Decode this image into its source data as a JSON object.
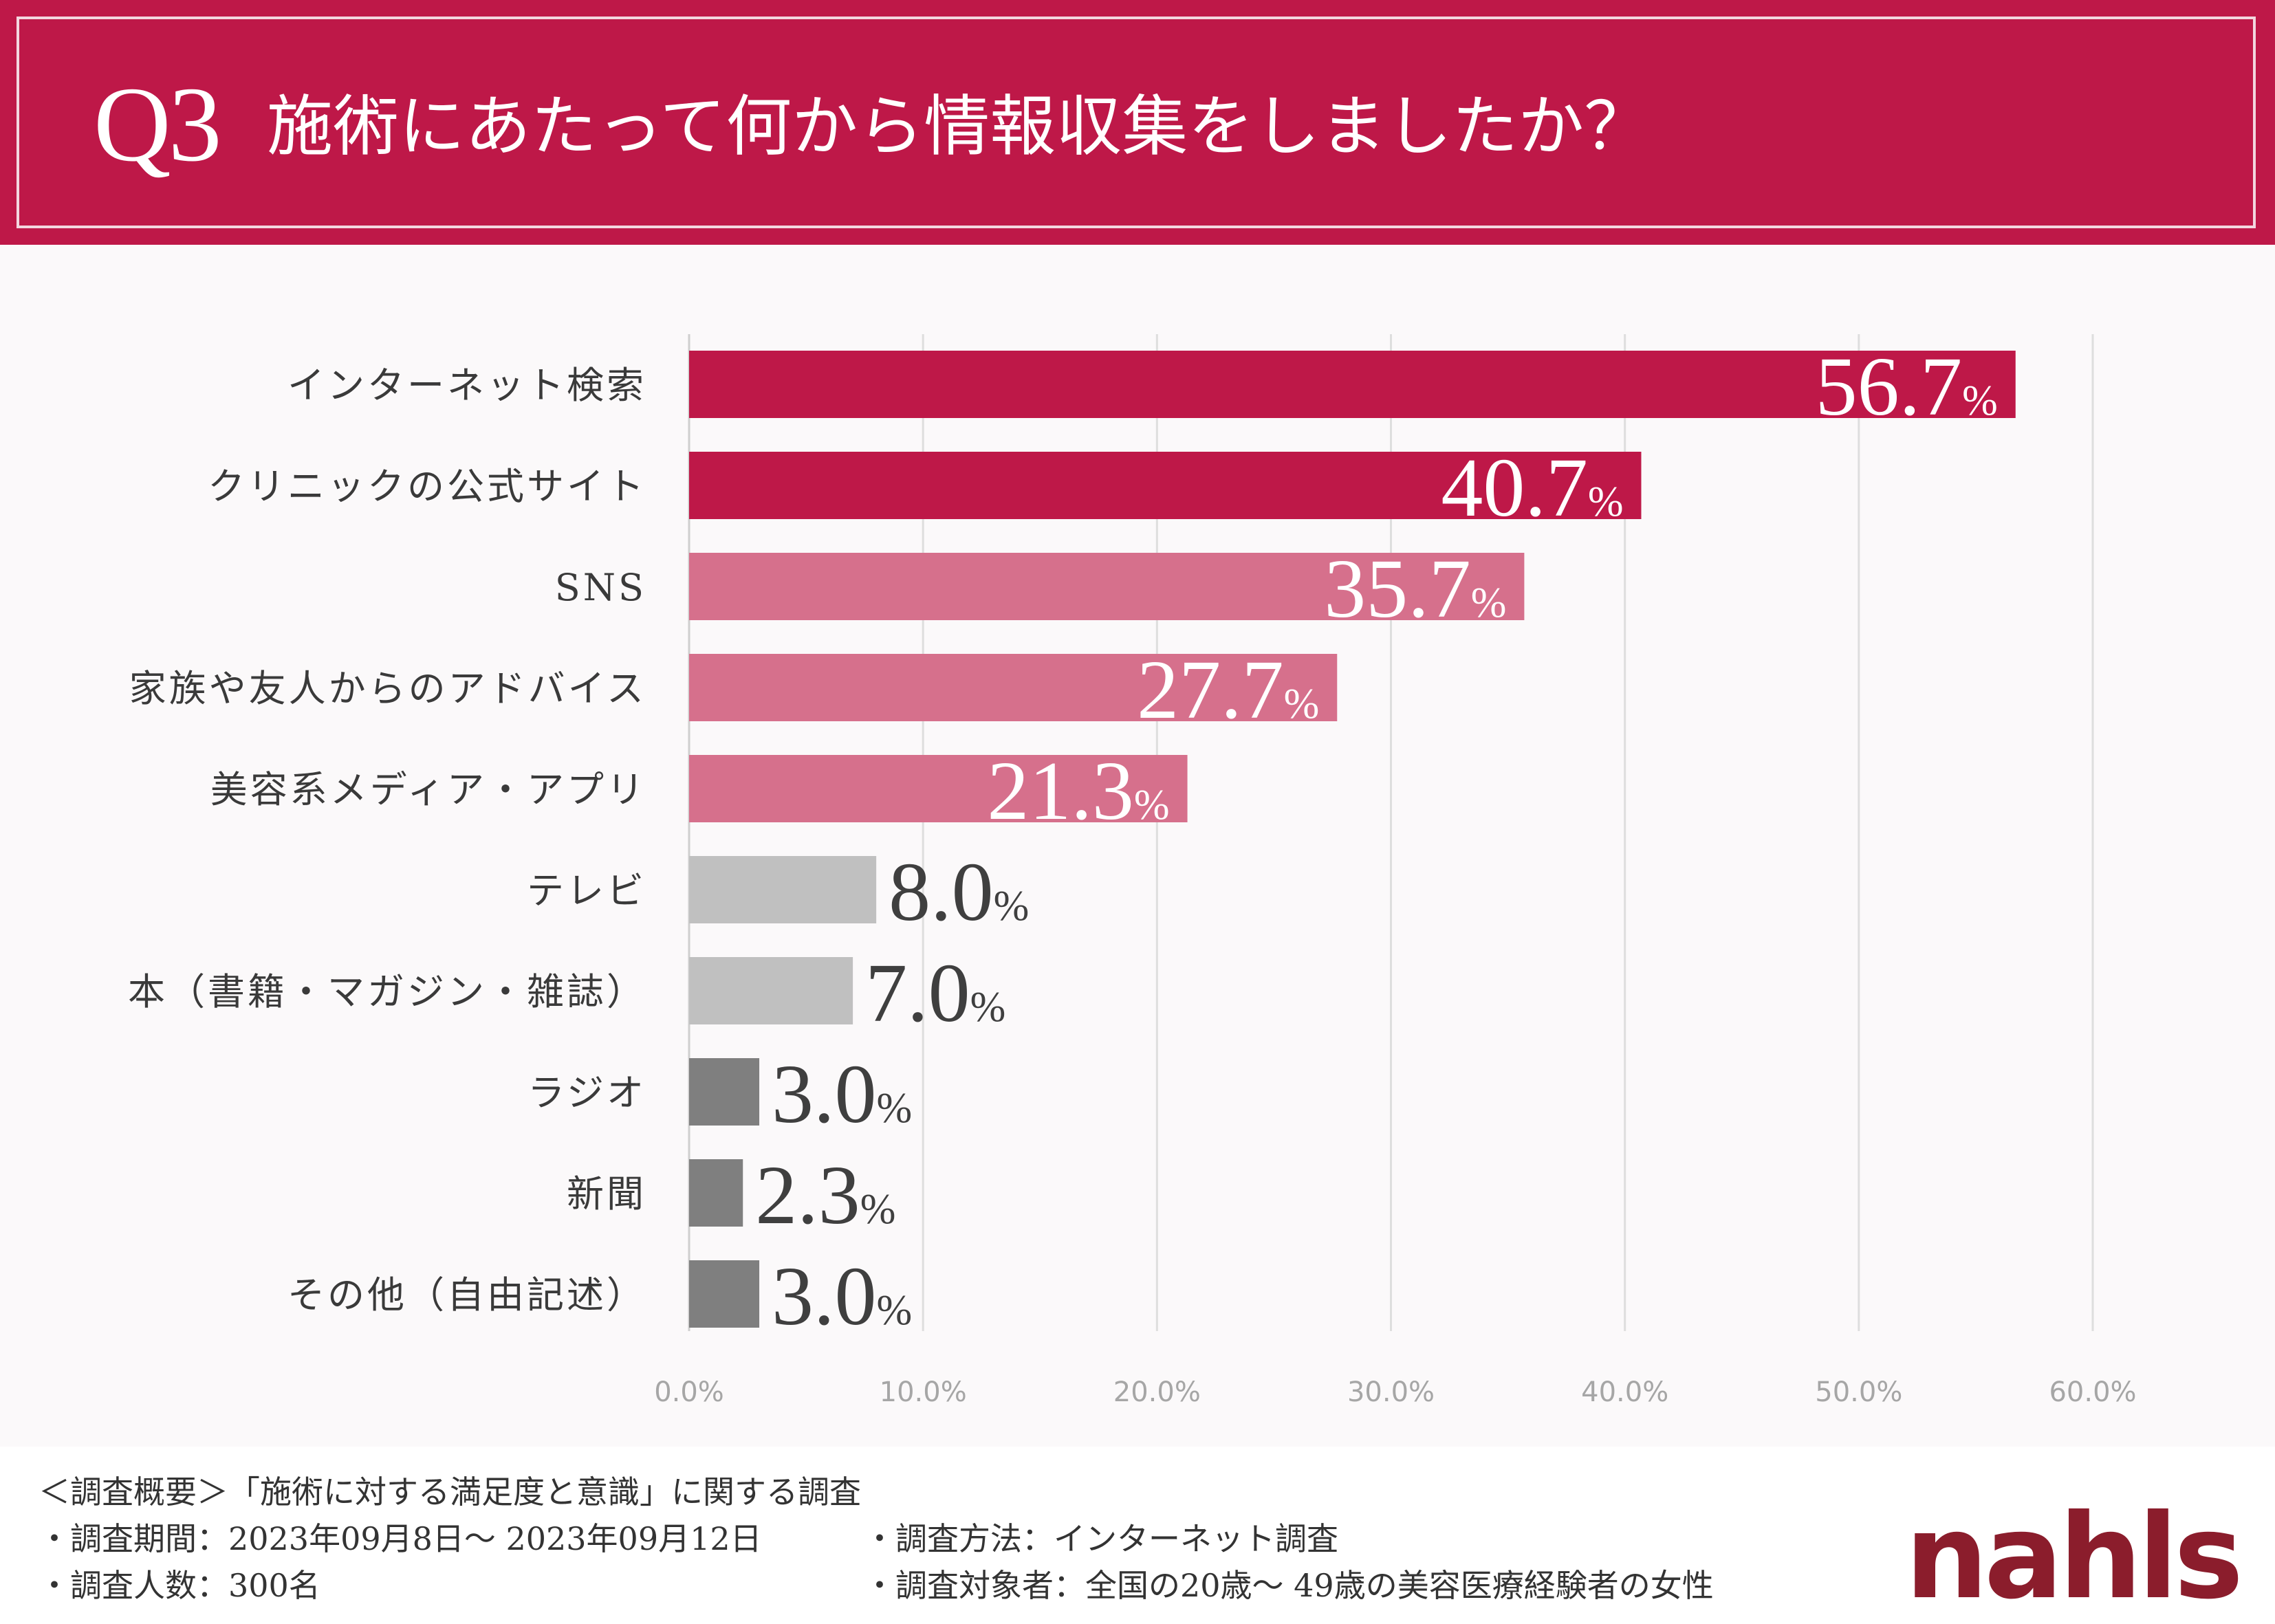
{
  "header": {
    "q_number": "Q3",
    "question": "施術にあたって何から情報収集をしましたか？"
  },
  "colors": {
    "header_bg": "#be1848",
    "dark_bar": "#be1848",
    "pink_bar": "#d6708c",
    "light_gray_bar": "#c0c0c0",
    "dark_gray_bar": "#7f7f7f",
    "logo": "#8b1d2c"
  },
  "chart_data": {
    "type": "bar",
    "orientation": "horizontal",
    "categories": [
      "インターネット検索",
      "クリニックの公式サイト",
      "SNS",
      "家族や友人からのアドバイス",
      "美容系メディア・アプリ",
      "テレビ",
      "本（書籍・マガジン・雑誌）",
      "ラジオ",
      "新聞",
      "その他（自由記述）"
    ],
    "values": [
      56.7,
      40.7,
      35.7,
      27.7,
      21.3,
      8.0,
      7.0,
      3.0,
      2.3,
      3.0
    ],
    "value_labels": [
      "56.7",
      "40.7",
      "35.7",
      "27.7",
      "21.3",
      "8.0",
      "7.0",
      "3.0",
      "2.3",
      "3.0"
    ],
    "unit": "%",
    "bar_color_groups": [
      "dark",
      "dark",
      "pink",
      "pink",
      "pink",
      "light",
      "light",
      "gray",
      "gray",
      "gray"
    ],
    "xlim": [
      0,
      60
    ],
    "x_ticks": [
      "0.0%",
      "10.0%",
      "20.0%",
      "30.0%",
      "40.0%",
      "50.0%",
      "60.0%"
    ],
    "grid": true,
    "title": "",
    "xlabel": "",
    "ylabel": ""
  },
  "footer": {
    "overview": "＜調査概要＞「施術に対する満足度と意識」に関する調査",
    "period": "・調査期間：2023年09月8日～ 2023年09月12日",
    "method": "・調査方法：インターネット調査",
    "count": "・調査人数：300名",
    "target": "・調査対象者：全国の20歳～ 49歳の美容医療経験者の女性",
    "logo": "nahls"
  }
}
